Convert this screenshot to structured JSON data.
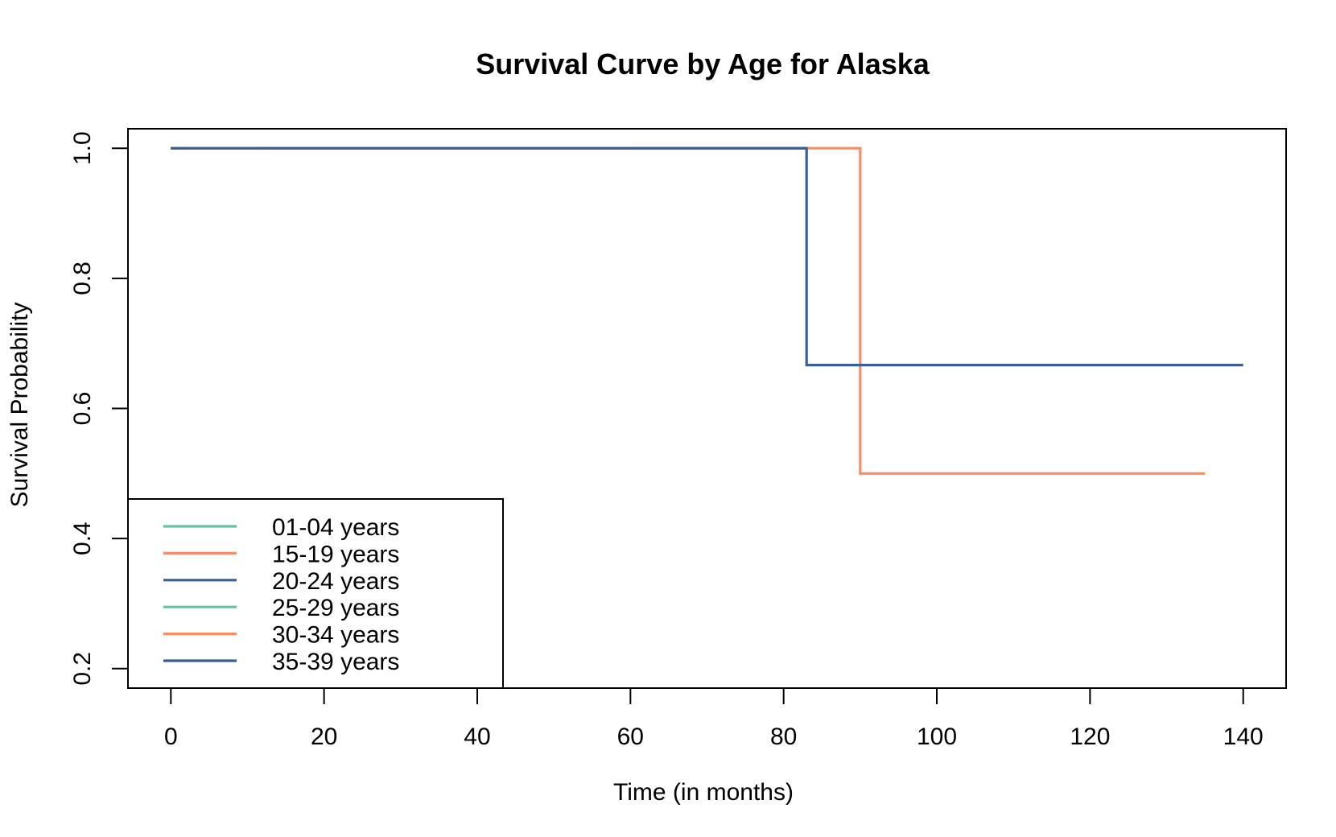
{
  "chart_data": {
    "type": "line",
    "title": "Survival Curve by Age for Alaska",
    "xlabel": "Time (in months)",
    "ylabel": "Survival Probability",
    "xlim": [
      -5.6,
      145.6
    ],
    "ylim": [
      0.17,
      1.03
    ],
    "x_ticks": [
      0,
      20,
      40,
      60,
      80,
      100,
      120,
      140
    ],
    "x_tick_labels": [
      "0",
      "20",
      "40",
      "60",
      "80",
      "100",
      "120",
      "140"
    ],
    "y_ticks": [
      0.2,
      0.4,
      0.6,
      0.8,
      1.0
    ],
    "y_tick_labels": [
      "0.2",
      "0.4",
      "0.6",
      "0.8",
      "1.0"
    ],
    "grid": false,
    "legend_position": "bottom-left",
    "series": [
      {
        "name": "01-04 years",
        "color": "#66c2a5",
        "step": true,
        "points": [
          [
            0,
            1.0
          ],
          [
            10,
            1.0
          ]
        ]
      },
      {
        "name": "15-19 years",
        "color": "#fc8d62",
        "step": true,
        "points": [
          [
            0,
            1.0
          ],
          [
            90,
            1.0
          ],
          [
            90,
            0.5
          ],
          [
            135,
            0.5
          ]
        ]
      },
      {
        "name": "20-24 years",
        "color": "#3b5f91",
        "step": true,
        "points": [
          [
            0,
            1.0
          ],
          [
            83,
            1.0
          ],
          [
            83,
            0.6667
          ],
          [
            140,
            0.6667
          ]
        ]
      },
      {
        "name": "25-29 years",
        "color": "#66c2a5",
        "step": true,
        "points": [
          [
            0,
            1.0
          ],
          [
            12,
            1.0
          ]
        ]
      },
      {
        "name": "30-34 years",
        "color": "#fc8d62",
        "step": true,
        "points": [
          [
            0,
            1.0
          ],
          [
            60,
            1.0
          ]
        ]
      },
      {
        "name": "35-39 years",
        "color": "#3b5f91",
        "step": true,
        "points": [
          [
            0,
            1.0
          ],
          [
            83,
            1.0
          ]
        ]
      }
    ]
  }
}
